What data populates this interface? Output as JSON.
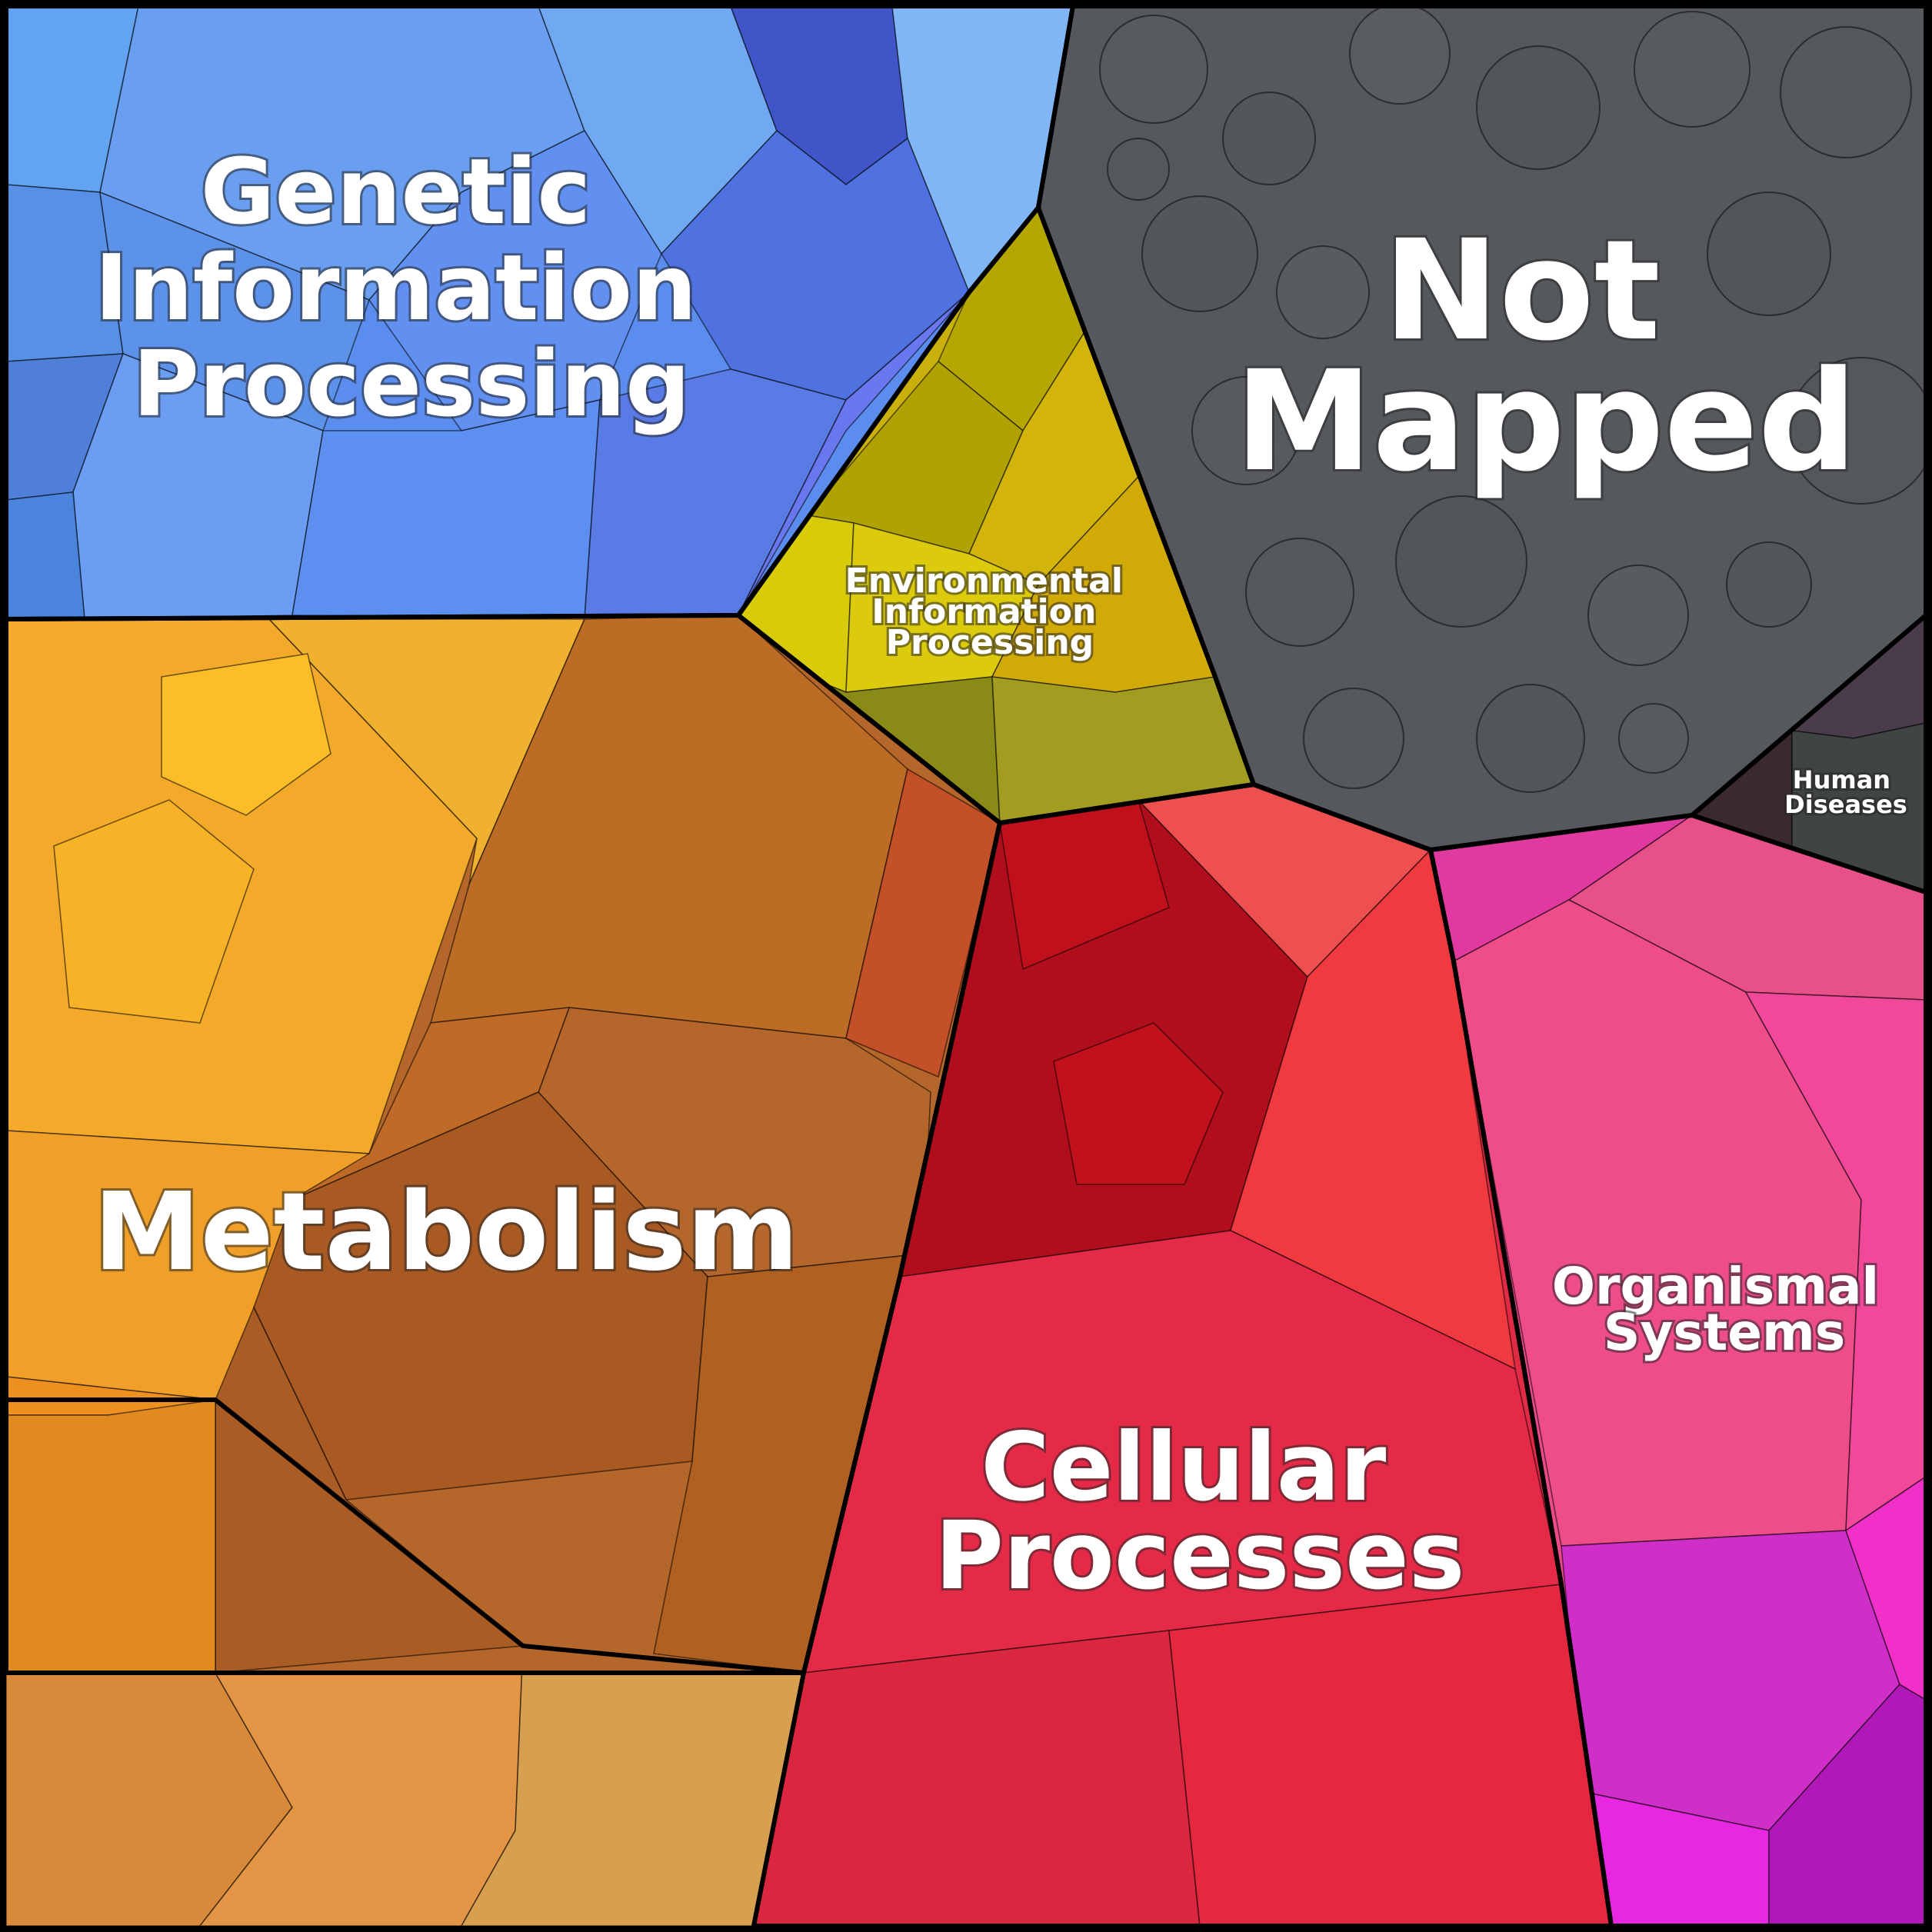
{
  "diagram": {
    "type": "voronoi-treemap",
    "regions": [
      {
        "id": "genetic",
        "label_lines": [
          "Genetic",
          "Information",
          "Processing"
        ],
        "color": "#5b8def",
        "color_alt": "#4a6fe0"
      },
      {
        "id": "environmental",
        "label_lines": [
          "Environmental",
          "Information",
          "Processing"
        ],
        "color": "#c9b00c",
        "color_alt": "#a9a010"
      },
      {
        "id": "not-mapped",
        "label_lines": [
          "Not",
          "Mapped"
        ],
        "color": "#55595e",
        "color_alt": "#4a4e53"
      },
      {
        "id": "metabolism",
        "label_lines": [
          "Metabolism"
        ],
        "color": "#b5662a",
        "color_alt": "#f0a830"
      },
      {
        "id": "cellular",
        "label_lines": [
          "Cellular",
          "Processes"
        ],
        "color": "#e22a45",
        "color_alt": "#c01020"
      },
      {
        "id": "organismal",
        "label_lines": [
          "Organismal",
          "Systems"
        ],
        "color": "#ee4a8a",
        "color_alt": "#d030c8"
      },
      {
        "id": "human-diseases",
        "label_lines": [
          "Human",
          "Diseases"
        ],
        "color": "#3e4242",
        "color_alt": "#4a3a4a"
      }
    ]
  }
}
